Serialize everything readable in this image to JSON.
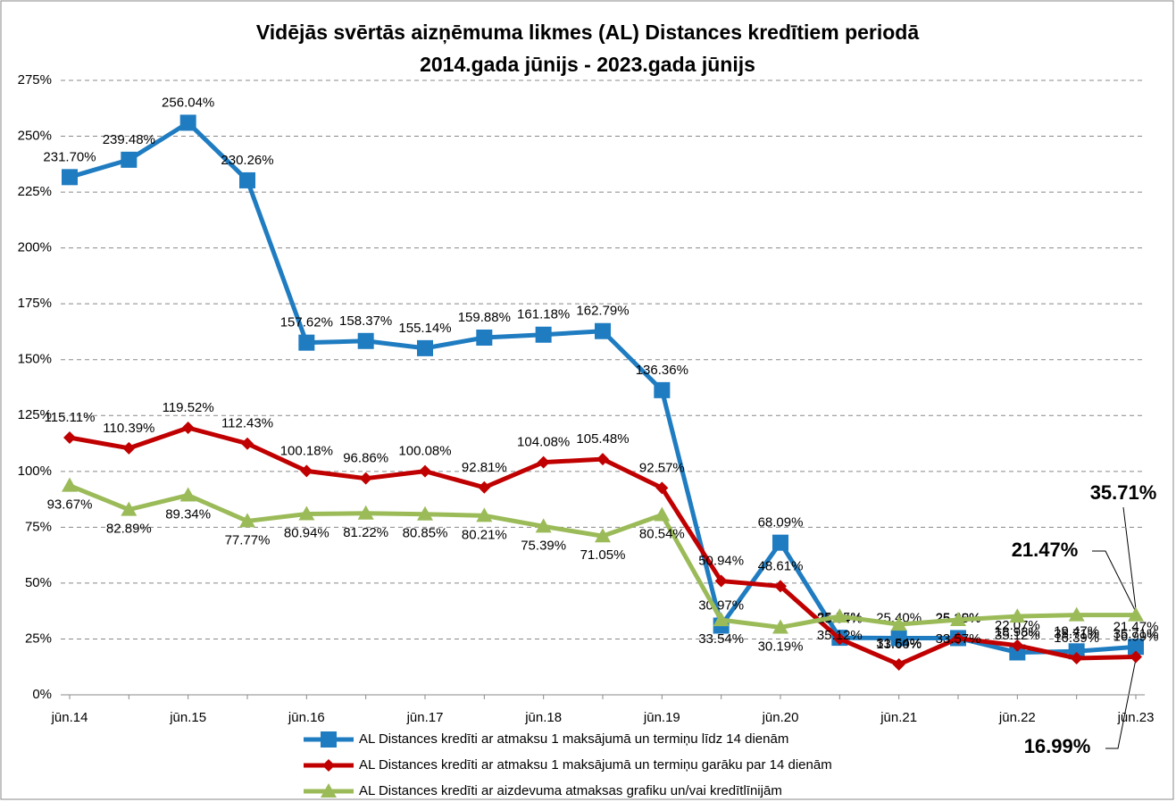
{
  "chart_data": {
    "type": "line",
    "title": [
      "Vidējās svērtās aizņēmuma likmes (AL) Distances kredītiem periodā",
      "2014.gada jūnijs - 2023.gada jūnijs"
    ],
    "categories": [
      "jūn.14",
      null,
      "jūn.15",
      null,
      "jūn.16",
      null,
      "jūn.17",
      null,
      "jūn.18",
      null,
      "jūn.19",
      null,
      "jūn.20",
      null,
      "jūn.21",
      null,
      "jūn.22",
      null,
      "jūn.23"
    ],
    "ylim": [
      0,
      275
    ],
    "yticks": [
      {
        "value": 0,
        "label": "0%"
      },
      {
        "value": 25,
        "label": "25%"
      },
      {
        "value": 50,
        "label": "50%"
      },
      {
        "value": 75,
        "label": "75%"
      },
      {
        "value": 100,
        "label": "100%"
      },
      {
        "value": 125,
        "label": "125%"
      },
      {
        "value": 150,
        "label": "150%"
      },
      {
        "value": 175,
        "label": "175%"
      },
      {
        "value": 200,
        "label": "200%"
      },
      {
        "value": 225,
        "label": "225%"
      },
      {
        "value": 250,
        "label": "250%"
      },
      {
        "value": 275,
        "label": "275%"
      }
    ],
    "grid": true,
    "legend": "bottom",
    "series": [
      {
        "name": "AL Distances kredīti ar atmaksu 1 maksājumā un termiņu līdz 14 dienām",
        "color": "#1f7cc1",
        "marker": "square",
        "values": [
          231.7,
          239.48,
          256.04,
          230.26,
          157.62,
          158.37,
          155.14,
          159.88,
          161.18,
          162.79,
          136.36,
          30.97,
          68.09,
          25.55,
          25.4,
          25.4,
          18.98,
          19.47,
          21.47
        ],
        "value_labels": [
          "231.70%",
          "239.48%",
          "256.04%",
          "230.26%",
          "157.62%",
          "158.37%",
          "155.14%",
          "159.88%",
          "161.18%",
          "162.79%",
          "136.36%",
          "30.97%",
          "68.09%",
          "25.55%",
          "25.40%",
          "25.40%",
          "18.98%",
          "19.47%",
          "21.47%"
        ]
      },
      {
        "name": "AL Distances kredīti ar atmaksu 1 maksājumā un termiņu garāku par 14 dienām",
        "color": "#c00000",
        "marker": "diamond",
        "values": [
          115.11,
          110.39,
          119.52,
          112.43,
          100.18,
          96.86,
          100.08,
          92.81,
          104.08,
          105.48,
          92.57,
          50.94,
          48.61,
          25.04,
          13.6,
          25.25,
          22.07,
          16.39,
          16.99
        ],
        "value_labels": [
          "115.11%",
          "110.39%",
          "119.52%",
          "112.43%",
          "100.18%",
          "96.86%",
          "100.08%",
          "92.81%",
          "104.08%",
          "105.48%",
          "92.57%",
          "50.94%",
          "48.61%",
          "25.04%",
          "13.60%",
          "25.25%",
          "22.07%",
          "16.39%",
          "16.99%"
        ]
      },
      {
        "name": "AL Distances kredīti ar aizdevuma atmaksas grafiku un/vai kredītlīnijām",
        "color": "#9bbb59",
        "marker": "triangle",
        "values": [
          93.67,
          82.89,
          89.34,
          77.77,
          80.94,
          81.22,
          80.85,
          80.21,
          75.39,
          71.05,
          80.54,
          33.54,
          30.19,
          35.12,
          31.54,
          33.57,
          35.12,
          35.71,
          35.71
        ],
        "value_labels": [
          "93.67%",
          "82.89%",
          "89.34%",
          "77.77%",
          "80.94%",
          "81.22%",
          "80.85%",
          "80.21%",
          "75.39%",
          "71.05%",
          "80.54%",
          "33.54%",
          "30.19%",
          "35.12%",
          "31.54%",
          "33.57%",
          "35.12%",
          "35.71%",
          "35.71%"
        ]
      }
    ],
    "annotations": [
      {
        "text": "35.71%"
      },
      {
        "text": "21.47%"
      },
      {
        "text": "16.99%"
      }
    ]
  }
}
